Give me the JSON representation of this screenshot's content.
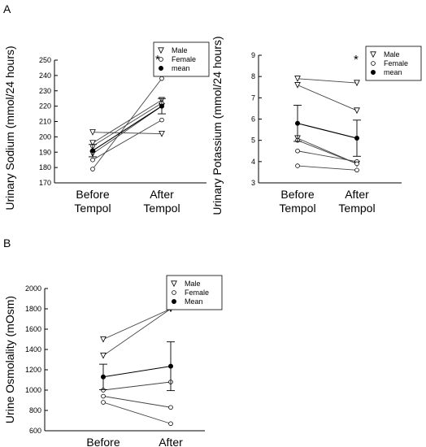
{
  "panel_labels": [
    "A",
    "B"
  ],
  "chart_data": [
    {
      "type": "line",
      "ylabel": "Urinary Sodium (mmol/24 hours)",
      "categories": [
        "Before\nTempol",
        "After\nTempol"
      ],
      "ylim": [
        170,
        250
      ],
      "yticks": [
        170,
        180,
        190,
        200,
        210,
        220,
        230,
        240,
        250
      ],
      "legend": {
        "placement": "top-right",
        "entries": [
          "Male",
          "Female",
          "mean"
        ]
      },
      "annotation": "*",
      "series": [
        {
          "name": "Male",
          "marker": "triangle-down",
          "lines": [
            [
              203,
              202
            ],
            [
              196,
              224
            ],
            [
              189,
              220
            ]
          ]
        },
        {
          "name": "Female",
          "marker": "circle",
          "lines": [
            [
              179,
              238
            ],
            [
              185,
              211
            ],
            [
              194,
              222
            ]
          ]
        },
        {
          "name": "mean",
          "marker": "filled-circle",
          "values": [
            191,
            220
          ],
          "errors": [
            4,
            5
          ]
        }
      ]
    },
    {
      "type": "line",
      "ylabel": "Urinary Potassium (mmol/24 hours)",
      "categories": [
        "Before\nTempol",
        "After\nTempol"
      ],
      "ylim": [
        3,
        9
      ],
      "yticks": [
        3,
        4,
        5,
        6,
        7,
        8,
        9
      ],
      "legend": {
        "placement": "top-right",
        "entries": [
          "Male",
          "Female",
          "mean"
        ]
      },
      "annotation": "*",
      "series": [
        {
          "name": "Male",
          "marker": "triangle-down",
          "lines": [
            [
              7.9,
              7.7
            ],
            [
              7.6,
              6.4
            ],
            [
              5.1,
              3.9
            ]
          ]
        },
        {
          "name": "Female",
          "marker": "circle",
          "lines": [
            [
              4.5,
              4.0
            ],
            [
              3.8,
              3.6
            ],
            [
              5.0,
              3.9
            ]
          ]
        },
        {
          "name": "mean",
          "marker": "filled-circle",
          "values": [
            5.8,
            5.1
          ],
          "errors": [
            0.85,
            0.85
          ]
        }
      ]
    },
    {
      "type": "line",
      "ylabel": "Urine Osmolality (mOsm)",
      "categories": [
        "Before\nTempol",
        "After\nTempol"
      ],
      "ylim": [
        600,
        2000
      ],
      "yticks": [
        600,
        800,
        1000,
        1200,
        1400,
        1600,
        1800,
        2000
      ],
      "legend": {
        "placement": "top-right",
        "entries": [
          "Male",
          "Female",
          "Mean"
        ]
      },
      "series": [
        {
          "name": "Male",
          "marker": "triangle-down",
          "lines": [
            [
              1500,
              1800
            ],
            [
              1340,
              1800
            ]
          ]
        },
        {
          "name": "Female",
          "marker": "circle",
          "lines": [
            [
              1000,
              1080
            ],
            [
              880,
              670
            ],
            [
              940,
              830
            ]
          ]
        },
        {
          "name": "Mean",
          "marker": "filled-circle",
          "values": [
            1130,
            1235
          ],
          "errors": [
            125,
            240
          ]
        }
      ]
    }
  ]
}
